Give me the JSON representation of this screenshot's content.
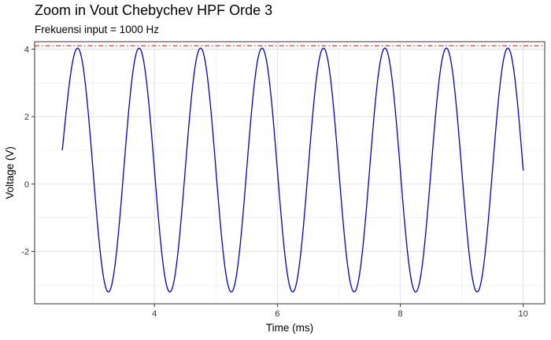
{
  "chart_data": {
    "type": "line",
    "title": "Zoom in Vout Chebychev HPF Orde 3",
    "subtitle": "Frekuensi input = 1000 Hz",
    "xlabel": "Time (ms)",
    "ylabel": "Voltage (V)",
    "xlim": [
      2.05,
      10.35
    ],
    "ylim": [
      -3.55,
      4.22
    ],
    "x_ticks": [
      4,
      6,
      8,
      10
    ],
    "y_ticks": [
      -2,
      0,
      2,
      4
    ],
    "grid": true,
    "series": [
      {
        "function": "sine",
        "x_start": 2.5,
        "x_end": 10.0,
        "frequency_per_ms": 1.0,
        "peak": 4.03,
        "trough": -3.2,
        "first_peak_x": 2.75,
        "start_value": 1.0,
        "end_value": 0.4,
        "color": "#0000cc"
      }
    ],
    "reference_lines": [
      {
        "orientation": "horizontal",
        "y": 4.1,
        "style": "dashdot",
        "color": "#ff0000"
      }
    ]
  }
}
